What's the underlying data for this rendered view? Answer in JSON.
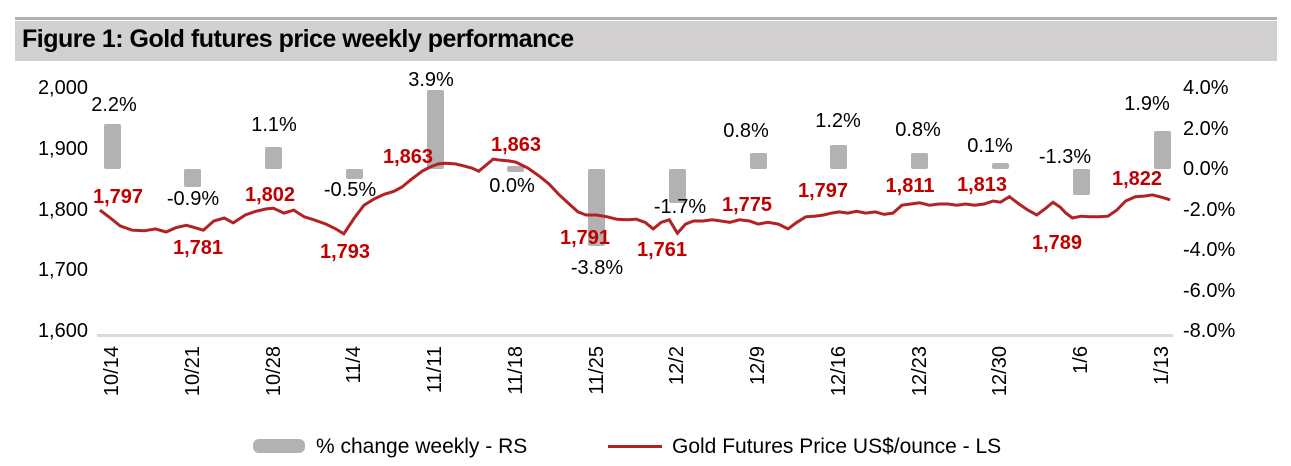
{
  "figure": {
    "title": "Figure 1: Gold futures price weekly performance"
  },
  "chart_data": {
    "type": "combo",
    "categories": [
      "10/14",
      "10/21",
      "10/28",
      "11/4",
      "11/11",
      "11/18",
      "11/25",
      "12/2",
      "12/9",
      "12/16",
      "12/23",
      "12/30",
      "1/6",
      "1/13"
    ],
    "series": [
      {
        "name": "% change weekly - RS",
        "type": "bar",
        "axis": "right",
        "unit": "%",
        "values": [
          2.2,
          -0.9,
          1.1,
          -0.5,
          3.9,
          0.0,
          -3.8,
          -1.7,
          0.8,
          1.2,
          0.8,
          0.1,
          -1.3,
          1.9
        ],
        "labels": [
          "2.2%",
          "-0.9%",
          "1.1%",
          "-0.5%",
          "3.9%",
          "0.0%",
          "-3.8%",
          "-1.7%",
          "0.8%",
          "1.2%",
          "0.8%",
          "0.1%",
          "-1.3%",
          "1.9%"
        ]
      },
      {
        "name": "Gold Futures Price US$/ounce - LS",
        "type": "line",
        "axis": "left",
        "unit": "US$/ounce",
        "values": [
          1797,
          1781,
          1802,
          1793,
          1863,
          1863,
          1791,
          1761,
          1775,
          1797,
          1811,
          1813,
          1789,
          1822
        ],
        "labels": [
          "1,797",
          "1,781",
          "1,802",
          "1,793",
          "1,863",
          "1,863",
          "1,791",
          "1,761",
          "1,775",
          "1,797",
          "1,811",
          "1,813",
          "1,789",
          "1,822"
        ]
      }
    ],
    "line_trace_approx": [
      [
        -0.15,
        1799
      ],
      [
        -0.02,
        1786
      ],
      [
        0.1,
        1773
      ],
      [
        0.25,
        1766
      ],
      [
        0.4,
        1765
      ],
      [
        0.54,
        1768
      ],
      [
        0.67,
        1763
      ],
      [
        0.79,
        1770
      ],
      [
        0.92,
        1774
      ],
      [
        1,
        1771
      ],
      [
        1.13,
        1766
      ],
      [
        1.26,
        1781
      ],
      [
        1.39,
        1786
      ],
      [
        1.5,
        1778
      ],
      [
        1.65,
        1791
      ],
      [
        1.78,
        1797
      ],
      [
        1.91,
        1801
      ],
      [
        2,
        1802
      ],
      [
        2.13,
        1794
      ],
      [
        2.25,
        1799
      ],
      [
        2.38,
        1788
      ],
      [
        2.5,
        1783
      ],
      [
        2.65,
        1776
      ],
      [
        2.77,
        1768
      ],
      [
        2.87,
        1760
      ],
      [
        3,
        1786
      ],
      [
        3.12,
        1807
      ],
      [
        3.24,
        1817
      ],
      [
        3.37,
        1825
      ],
      [
        3.49,
        1830
      ],
      [
        3.59,
        1837
      ],
      [
        3.71,
        1850
      ],
      [
        3.84,
        1863
      ],
      [
        3.94,
        1870
      ],
      [
        4.04,
        1875
      ],
      [
        4.13,
        1876
      ],
      [
        4.25,
        1875
      ],
      [
        4.35,
        1872
      ],
      [
        4.46,
        1868
      ],
      [
        4.54,
        1863
      ],
      [
        4.63,
        1873
      ],
      [
        4.72,
        1883
      ],
      [
        4.82,
        1881
      ],
      [
        4.91,
        1880
      ],
      [
        5,
        1878
      ],
      [
        5.15,
        1868
      ],
      [
        5.29,
        1855
      ],
      [
        5.41,
        1842
      ],
      [
        5.53,
        1825
      ],
      [
        5.66,
        1809
      ],
      [
        5.77,
        1796
      ],
      [
        5.87,
        1791
      ],
      [
        6,
        1791
      ],
      [
        6.13,
        1788
      ],
      [
        6.25,
        1784
      ],
      [
        6.38,
        1783
      ],
      [
        6.49,
        1784
      ],
      [
        6.6,
        1779
      ],
      [
        6.7,
        1768
      ],
      [
        6.8,
        1779
      ],
      [
        6.9,
        1783
      ],
      [
        7,
        1761
      ],
      [
        7.1,
        1776
      ],
      [
        7.2,
        1781
      ],
      [
        7.32,
        1781
      ],
      [
        7.43,
        1783
      ],
      [
        7.54,
        1781
      ],
      [
        7.65,
        1779
      ],
      [
        7.77,
        1783
      ],
      [
        7.89,
        1781
      ],
      [
        8,
        1776
      ],
      [
        8.12,
        1779
      ],
      [
        8.25,
        1776
      ],
      [
        8.37,
        1768
      ],
      [
        8.48,
        1779
      ],
      [
        8.59,
        1788
      ],
      [
        8.7,
        1789
      ],
      [
        8.81,
        1791
      ],
      [
        8.91,
        1794
      ],
      [
        9,
        1796
      ],
      [
        9.11,
        1794
      ],
      [
        9.22,
        1797
      ],
      [
        9.33,
        1794
      ],
      [
        9.45,
        1796
      ],
      [
        9.56,
        1792
      ],
      [
        9.67,
        1794
      ],
      [
        9.78,
        1807
      ],
      [
        9.89,
        1809
      ],
      [
        10,
        1811
      ],
      [
        10.12,
        1807
      ],
      [
        10.24,
        1809
      ],
      [
        10.35,
        1809
      ],
      [
        10.46,
        1807
      ],
      [
        10.57,
        1809
      ],
      [
        10.68,
        1807
      ],
      [
        10.8,
        1809
      ],
      [
        10.91,
        1814
      ],
      [
        11,
        1812
      ],
      [
        11.11,
        1821
      ],
      [
        11.23,
        1809
      ],
      [
        11.34,
        1799
      ],
      [
        11.45,
        1791
      ],
      [
        11.55,
        1801
      ],
      [
        11.65,
        1812
      ],
      [
        11.74,
        1804
      ],
      [
        11.81,
        1794
      ],
      [
        11.89,
        1786
      ],
      [
        12,
        1789
      ],
      [
        12.11,
        1788
      ],
      [
        12.22,
        1788
      ],
      [
        12.33,
        1789
      ],
      [
        12.44,
        1799
      ],
      [
        12.55,
        1814
      ],
      [
        12.67,
        1821
      ],
      [
        12.78,
        1822
      ],
      [
        12.88,
        1824
      ],
      [
        13,
        1820
      ],
      [
        13.1,
        1816
      ]
    ],
    "left_axis": {
      "ticks": [
        "2,000",
        "1,900",
        "1,800",
        "1,700",
        "1,600"
      ],
      "range": [
        1600,
        2000
      ]
    },
    "right_axis": {
      "ticks": [
        "4.0%",
        "2.0%",
        "0.0%",
        "-2.0%",
        "-4.0%",
        "-6.0%",
        "-8.0%"
      ],
      "range": [
        -8,
        4
      ]
    },
    "legend": [
      {
        "label": "% change weekly - RS",
        "swatch": "bar"
      },
      {
        "label": "Gold Futures Price US$/ounce - LS",
        "swatch": "line"
      }
    ]
  },
  "colors": {
    "bar": "#b3b1b1",
    "line": "#b22222",
    "price_label": "#c00000",
    "pct_label": "#000000",
    "title_bg": "#d2d0d0",
    "gridline": "#d9d9d9",
    "axis_text": "#000000",
    "top_rule": "#b3b1b1"
  }
}
